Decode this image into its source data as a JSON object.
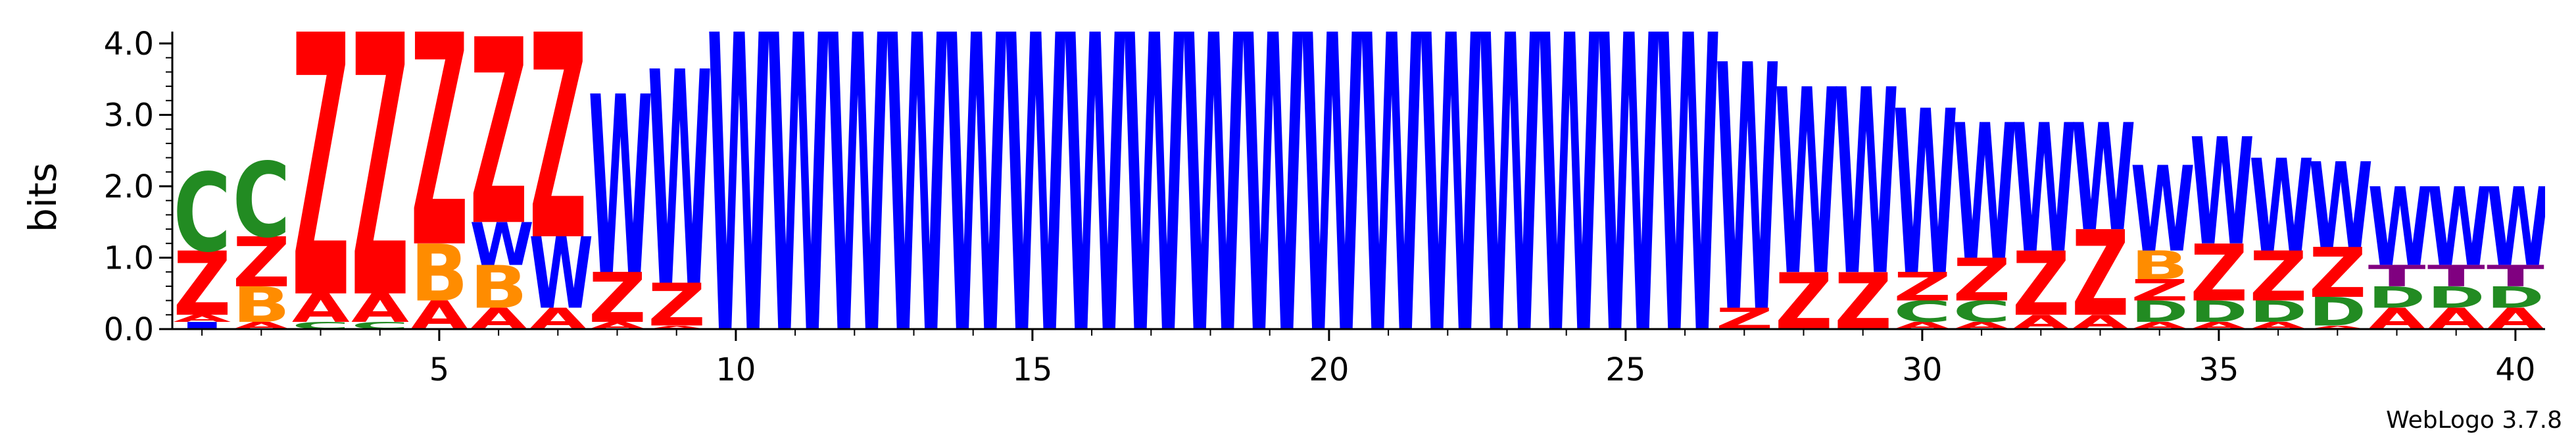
{
  "chart_data": {
    "type": "sequence-logo",
    "ylabel": "bits",
    "ylim": [
      0,
      4.2
    ],
    "yticks": [
      "0.0",
      "1.0",
      "2.0",
      "3.0",
      "4.0"
    ],
    "xticks": [
      5,
      10,
      15,
      20,
      25,
      30,
      35,
      40
    ],
    "xlim": [
      1,
      40
    ],
    "credit": "WebLogo 3.7.8",
    "colors": {
      "W": "#0000ff",
      "Z": "#ff0000",
      "C": "#228b22",
      "D": "#228b22",
      "A": "#ff0000",
      "B": "#ff8c00",
      "T": "#800080",
      "I": "#0000ff"
    },
    "positions": [
      {
        "pos": 1,
        "stack": [
          [
            "I",
            0.1
          ],
          [
            "A",
            0.1
          ],
          [
            "Z",
            0.9
          ],
          [
            "C",
            1.1
          ]
        ]
      },
      {
        "pos": 2,
        "stack": [
          [
            "A",
            0.1
          ],
          [
            "B",
            0.5
          ],
          [
            "Z",
            0.7
          ],
          [
            "C",
            1.05
          ]
        ]
      },
      {
        "pos": 3,
        "stack": [
          [
            "C",
            0.1
          ],
          [
            "A",
            0.4
          ],
          [
            "Z",
            3.8
          ]
        ]
      },
      {
        "pos": 4,
        "stack": [
          [
            "C",
            0.1
          ],
          [
            "A",
            0.4
          ],
          [
            "Z",
            3.8
          ]
        ]
      },
      {
        "pos": 5,
        "stack": [
          [
            "A",
            0.4
          ],
          [
            "B",
            0.8
          ],
          [
            "Z",
            3.2
          ]
        ]
      },
      {
        "pos": 6,
        "stack": [
          [
            "A",
            0.3
          ],
          [
            "B",
            0.6
          ],
          [
            "W",
            0.6
          ],
          [
            "Z",
            2.6
          ]
        ]
      },
      {
        "pos": 7,
        "stack": [
          [
            "A",
            0.3
          ],
          [
            "W",
            1.0
          ],
          [
            "Z",
            2.9
          ]
        ]
      },
      {
        "pos": 8,
        "stack": [
          [
            "A",
            0.1
          ],
          [
            "Z",
            0.7
          ],
          [
            "W",
            2.5
          ]
        ]
      },
      {
        "pos": 9,
        "stack": [
          [
            "A",
            0.05
          ],
          [
            "Z",
            0.6
          ],
          [
            "W",
            3.0
          ]
        ]
      },
      {
        "pos": 10,
        "stack": [
          [
            "W",
            4.32
          ]
        ]
      },
      {
        "pos": 11,
        "stack": [
          [
            "W",
            4.32
          ]
        ]
      },
      {
        "pos": 12,
        "stack": [
          [
            "W",
            4.32
          ]
        ]
      },
      {
        "pos": 13,
        "stack": [
          [
            "W",
            4.32
          ]
        ]
      },
      {
        "pos": 14,
        "stack": [
          [
            "W",
            4.32
          ]
        ]
      },
      {
        "pos": 15,
        "stack": [
          [
            "W",
            4.32
          ]
        ]
      },
      {
        "pos": 16,
        "stack": [
          [
            "W",
            4.32
          ]
        ]
      },
      {
        "pos": 17,
        "stack": [
          [
            "W",
            4.32
          ]
        ]
      },
      {
        "pos": 18,
        "stack": [
          [
            "W",
            4.32
          ]
        ]
      },
      {
        "pos": 19,
        "stack": [
          [
            "W",
            4.32
          ]
        ]
      },
      {
        "pos": 20,
        "stack": [
          [
            "W",
            4.32
          ]
        ]
      },
      {
        "pos": 21,
        "stack": [
          [
            "W",
            4.32
          ]
        ]
      },
      {
        "pos": 22,
        "stack": [
          [
            "W",
            4.32
          ]
        ]
      },
      {
        "pos": 23,
        "stack": [
          [
            "W",
            4.32
          ]
        ]
      },
      {
        "pos": 24,
        "stack": [
          [
            "W",
            4.32
          ]
        ]
      },
      {
        "pos": 25,
        "stack": [
          [
            "W",
            4.32
          ]
        ]
      },
      {
        "pos": 26,
        "stack": [
          [
            "W",
            4.32
          ]
        ]
      },
      {
        "pos": 27,
        "stack": [
          [
            "Z",
            0.3
          ],
          [
            "W",
            3.45
          ]
        ]
      },
      {
        "pos": 28,
        "stack": [
          [
            "Z",
            0.8
          ],
          [
            "W",
            2.6
          ]
        ]
      },
      {
        "pos": 29,
        "stack": [
          [
            "Z",
            0.8
          ],
          [
            "W",
            2.6
          ]
        ]
      },
      {
        "pos": 30,
        "stack": [
          [
            "A",
            0.1
          ],
          [
            "C",
            0.3
          ],
          [
            "Z",
            0.4
          ],
          [
            "W",
            2.3
          ]
        ]
      },
      {
        "pos": 31,
        "stack": [
          [
            "A",
            0.1
          ],
          [
            "C",
            0.3
          ],
          [
            "Z",
            0.6
          ],
          [
            "W",
            1.9
          ]
        ]
      },
      {
        "pos": 32,
        "stack": [
          [
            "A",
            0.2
          ],
          [
            "Z",
            0.9
          ],
          [
            "W",
            1.8
          ]
        ]
      },
      {
        "pos": 33,
        "stack": [
          [
            "A",
            0.2
          ],
          [
            "Z",
            1.2
          ],
          [
            "W",
            1.5
          ]
        ]
      },
      {
        "pos": 34,
        "stack": [
          [
            "A",
            0.1
          ],
          [
            "D",
            0.3
          ],
          [
            "Z",
            0.3
          ],
          [
            "B",
            0.4
          ],
          [
            "W",
            1.2
          ]
        ]
      },
      {
        "pos": 35,
        "stack": [
          [
            "A",
            0.1
          ],
          [
            "D",
            0.3
          ],
          [
            "Z",
            0.8
          ],
          [
            "W",
            1.5
          ]
        ]
      },
      {
        "pos": 36,
        "stack": [
          [
            "A",
            0.1
          ],
          [
            "D",
            0.3
          ],
          [
            "Z",
            0.7
          ],
          [
            "W",
            1.3
          ]
        ]
      },
      {
        "pos": 37,
        "stack": [
          [
            "A",
            0.05
          ],
          [
            "D",
            0.4
          ],
          [
            "Z",
            0.7
          ],
          [
            "W",
            1.2
          ]
        ]
      },
      {
        "pos": 38,
        "stack": [
          [
            "A",
            0.3
          ],
          [
            "D",
            0.3
          ],
          [
            "T",
            0.3
          ],
          [
            "W",
            1.1
          ]
        ]
      },
      {
        "pos": 39,
        "stack": [
          [
            "A",
            0.3
          ],
          [
            "D",
            0.3
          ],
          [
            "T",
            0.3
          ],
          [
            "W",
            1.1
          ]
        ]
      },
      {
        "pos": 40,
        "stack": [
          [
            "A",
            0.3
          ],
          [
            "D",
            0.3
          ],
          [
            "T",
            0.3
          ],
          [
            "W",
            1.1
          ]
        ]
      }
    ]
  }
}
